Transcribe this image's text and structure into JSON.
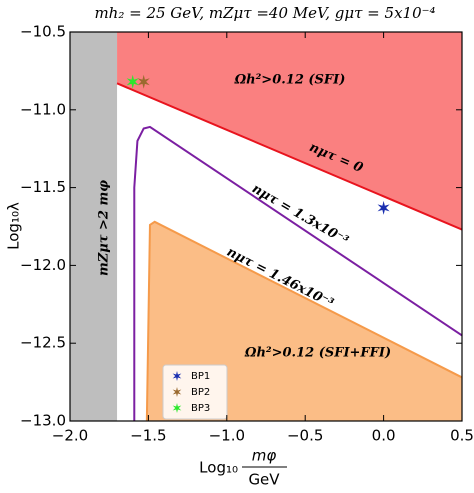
{
  "chart_data": {
    "type": "region",
    "title": "mh₂ = 25 GeV, mZμτ =40 MeV, gμτ = 5x10⁻⁴",
    "x_label": {
      "prefix": "Log₁₀",
      "numerator": "mφ",
      "denominator": "GeV"
    },
    "y_label": "Log₁₀λ",
    "xlim": [
      -2.0,
      0.5
    ],
    "ylim": [
      -13.0,
      -10.5
    ],
    "xticks": [
      {
        "value": -2.0,
        "label": "−2.0"
      },
      {
        "value": -1.5,
        "label": "−1.5"
      },
      {
        "value": -1.0,
        "label": "−1.0"
      },
      {
        "value": -0.5,
        "label": "−0.5"
      },
      {
        "value": 0.0,
        "label": "0.0"
      },
      0.5
    ],
    "yticks": [
      {
        "value": -10.5,
        "label": "−10.5"
      },
      {
        "value": -11.0,
        "label": "−11.0"
      },
      {
        "value": -11.5,
        "label": "−11.5"
      },
      {
        "value": -12.0,
        "label": "−12.0"
      },
      {
        "value": -12.5,
        "label": "−12.5"
      },
      {
        "value": -13.0,
        "label": "−13.0"
      }
    ],
    "regions": [
      {
        "label": "mZμτ >2 mφ",
        "color": "#bebebe",
        "fill_to": "top",
        "x": [
          -2.0,
          -1.7
        ],
        "y": [
          -13.0,
          -13.0
        ]
      },
      {
        "label": "Ωh²>0.12 (SFI)",
        "color": "#fa8080",
        "fill_to": "top",
        "line_color": "#e8141e",
        "x": [
          -1.7,
          0.5
        ],
        "y": [
          -10.83,
          -11.77
        ]
      },
      {
        "label": "Ωh²>0.12 (SFI+FFI)",
        "color": "#fbbd86",
        "fill_to": "bottom",
        "line_color": "#f59a4a",
        "x": [
          -1.51,
          -1.49,
          -1.46,
          0.5
        ],
        "y": [
          -13.0,
          -11.74,
          -11.72,
          -12.72
        ]
      }
    ],
    "lines": [
      {
        "label": "nμτ = 0",
        "color": "#e8141e",
        "x": [
          -1.7,
          0.5
        ],
        "y": [
          -10.83,
          -11.77
        ]
      },
      {
        "label": "nμτ = 1.3x10⁻³",
        "color": "#7b1fa2",
        "x": [
          -1.59,
          -1.59,
          -1.57,
          -1.53,
          -1.49,
          0.5
        ],
        "y": [
          -13.0,
          -11.5,
          -11.2,
          -11.12,
          -11.11,
          -12.45
        ]
      },
      {
        "label": "nμτ = 1.46x10⁻³",
        "color": "#f59a4a",
        "x": [
          -1.51,
          -1.49,
          -1.46,
          0.5
        ],
        "y": [
          -13.0,
          -11.74,
          -11.72,
          -12.72
        ]
      }
    ],
    "series": [
      {
        "name": "BP1",
        "color": "#1a2fb0",
        "x": [
          0.0
        ],
        "y": [
          -11.63
        ]
      },
      {
        "name": "BP2",
        "color": "#9b6a2f",
        "x": [
          -1.53
        ],
        "y": [
          -10.82
        ]
      },
      {
        "name": "BP3",
        "color": "#2de82d",
        "x": [
          -1.6
        ],
        "y": [
          -10.82
        ]
      }
    ],
    "legend": "lower left"
  }
}
